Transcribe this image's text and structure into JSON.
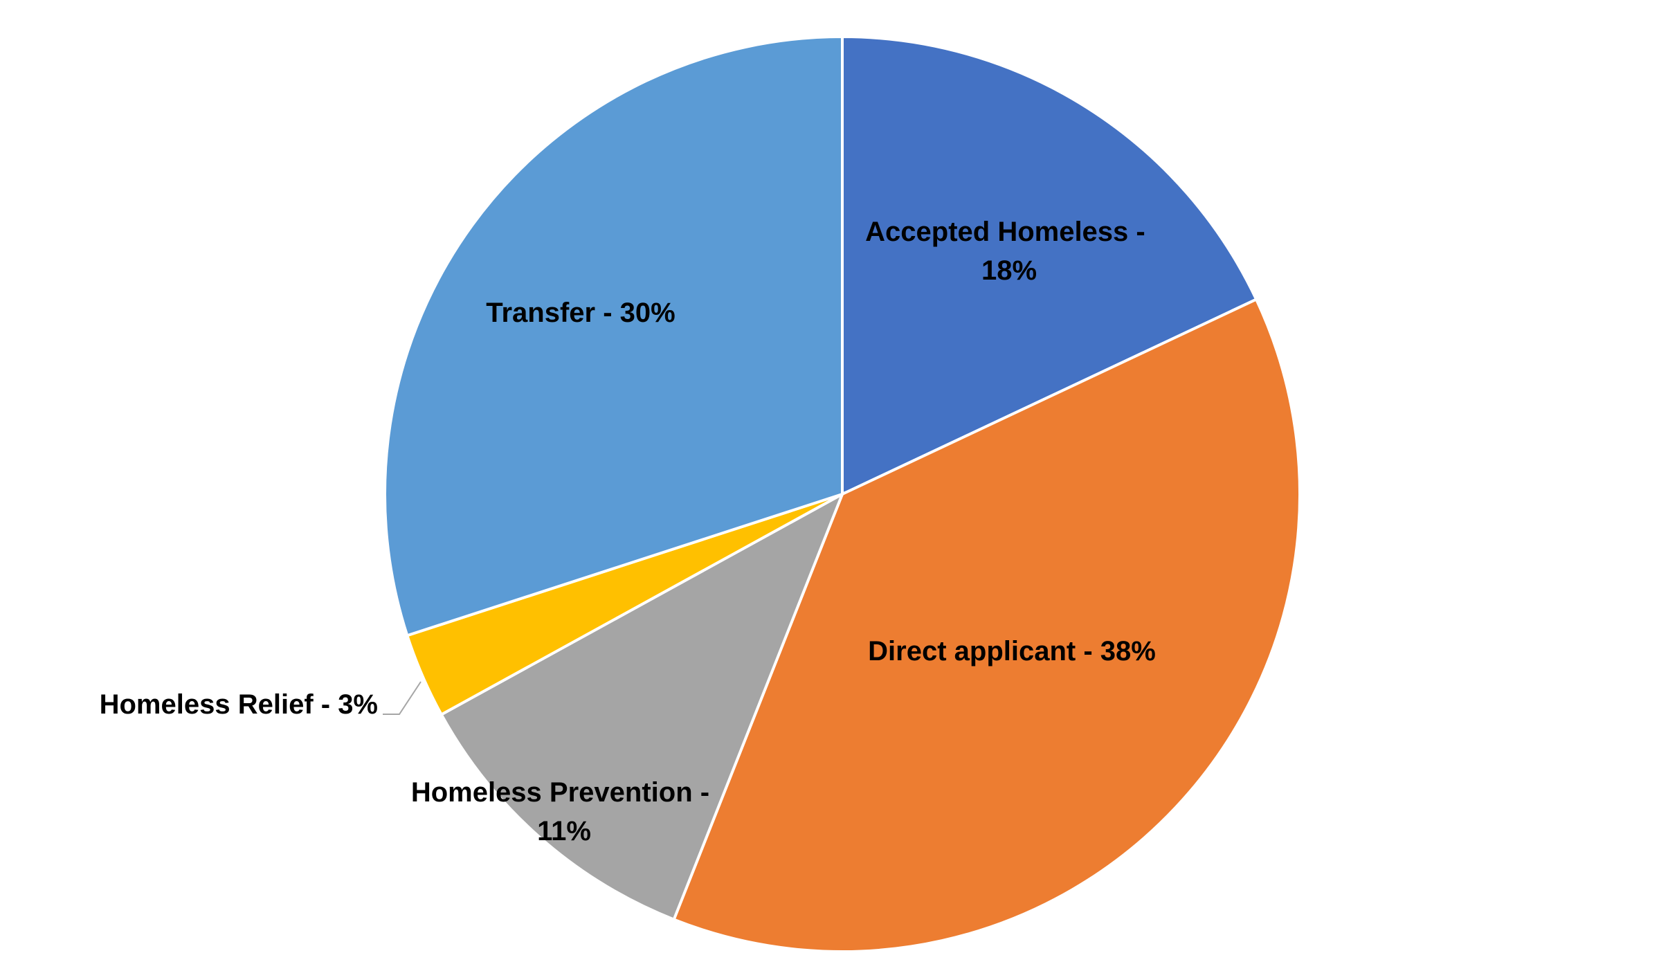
{
  "chart_data": {
    "type": "pie",
    "categories": [
      "Accepted Homeless",
      "Direct applicant",
      "Homeless Prevention",
      "Homeless Relief",
      "Transfer"
    ],
    "values": [
      18,
      38,
      11,
      3,
      30
    ],
    "value_labels": [
      "18%",
      "38%",
      "11%",
      "3%",
      "30%"
    ],
    "label_separator": " - ",
    "colors": [
      "#4472C4",
      "#ED7D31",
      "#A5A5A5",
      "#FFC000",
      "#5B9BD5"
    ]
  }
}
